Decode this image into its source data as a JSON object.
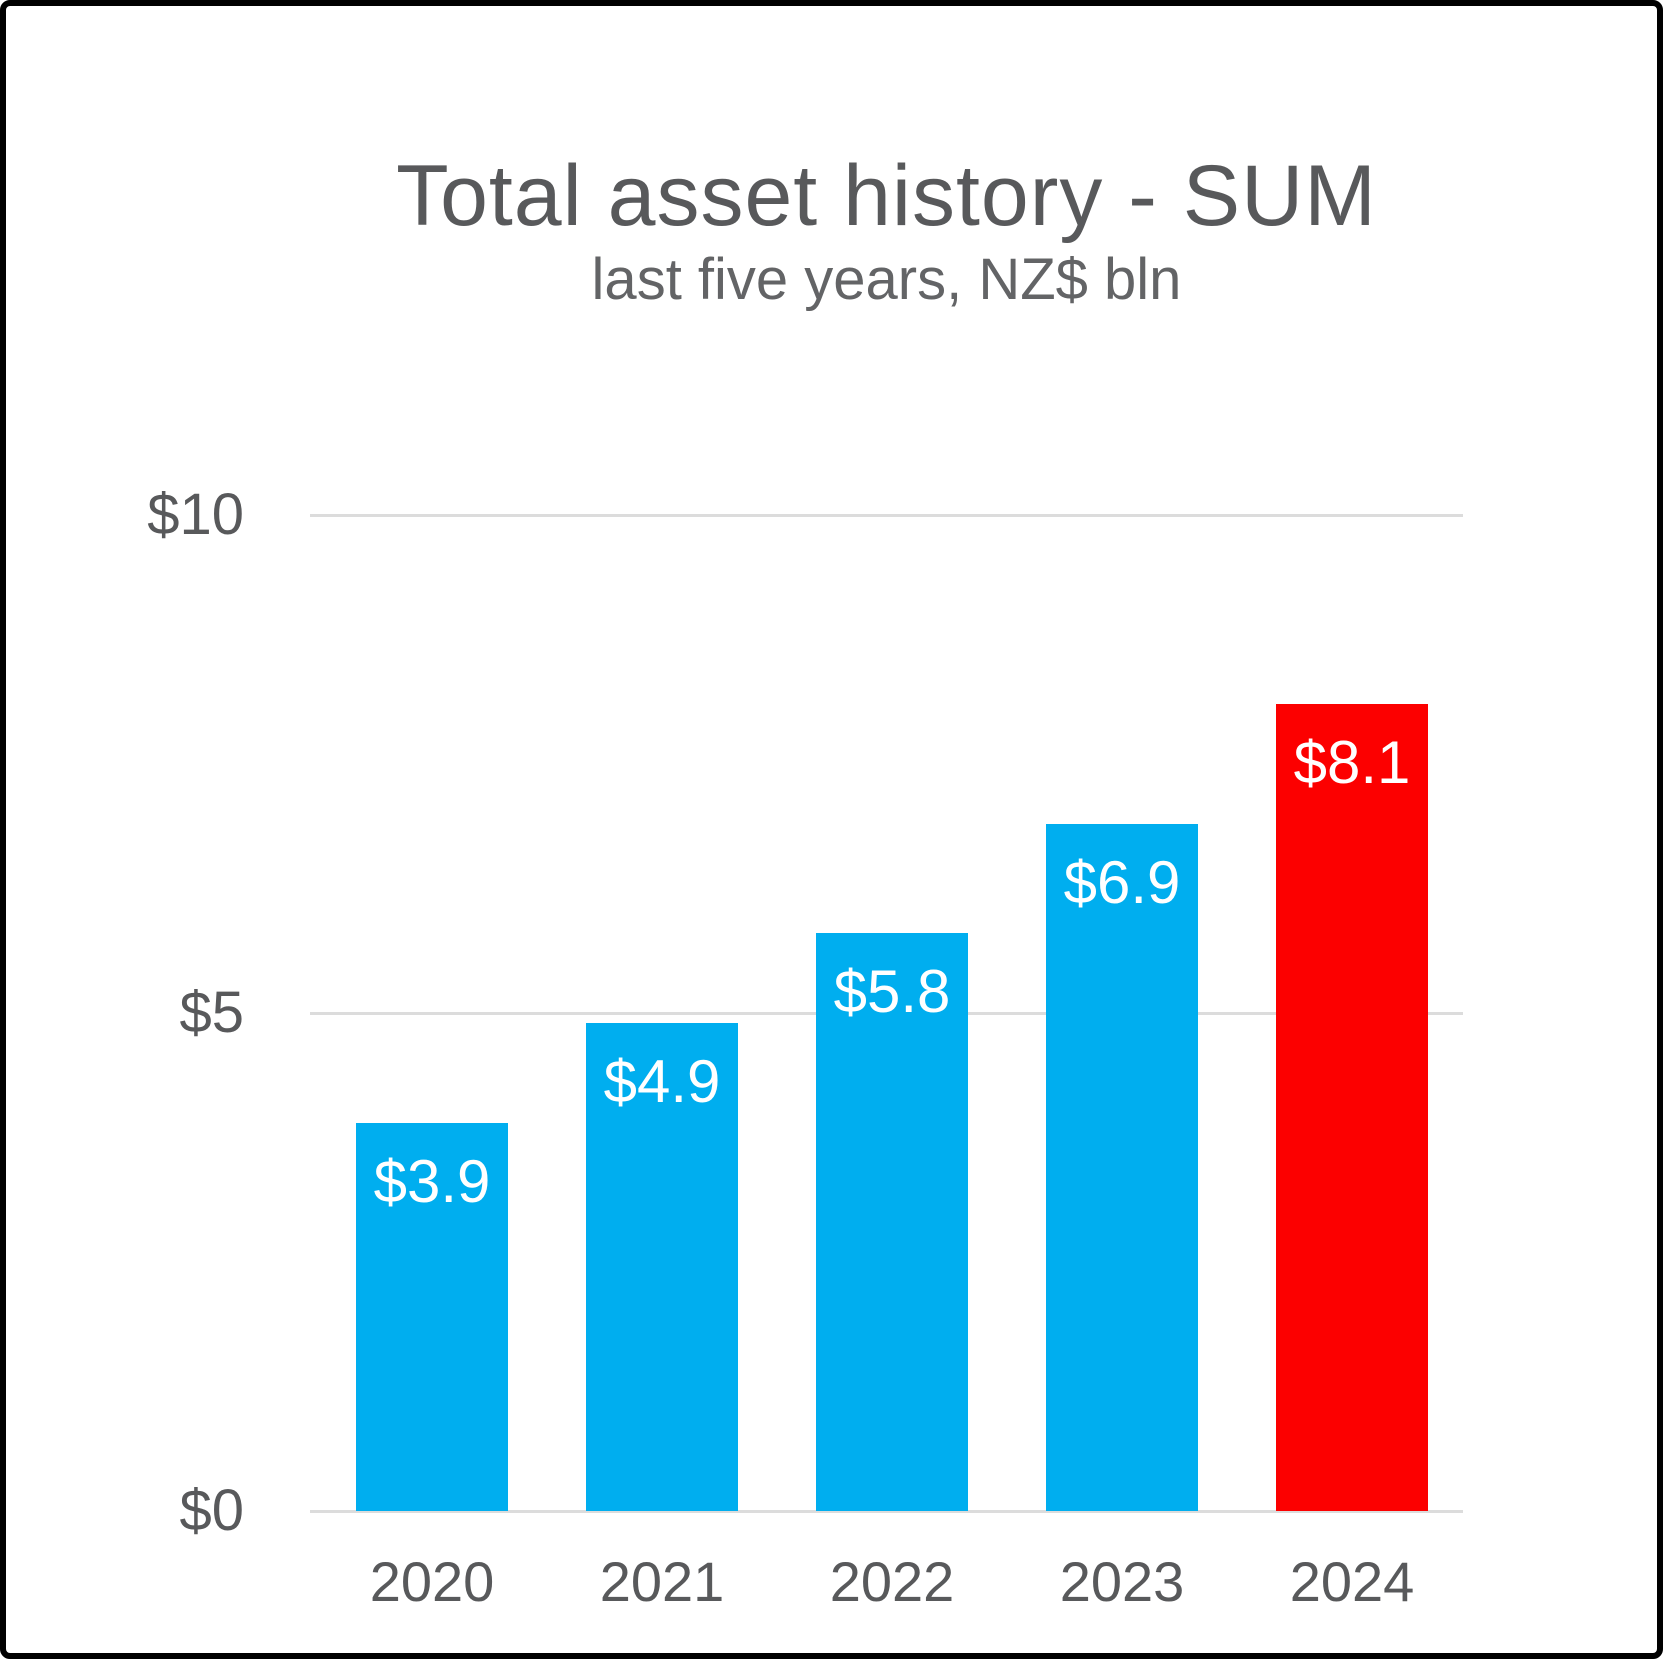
{
  "chart_data": {
    "type": "bar",
    "title": "Total asset history - SUM",
    "subtitle": "last five years, NZ$ bln",
    "categories": [
      "2020",
      "2021",
      "2022",
      "2023",
      "2024"
    ],
    "values": [
      3.9,
      4.9,
      5.8,
      6.9,
      8.1
    ],
    "bar_labels": [
      "$3.9",
      "$4.9",
      "$5.8",
      "$6.9",
      "$8.1"
    ],
    "bar_colors": [
      "#00AEEF",
      "#00AEEF",
      "#00AEEF",
      "#00AEEF",
      "#FC0000"
    ],
    "y_ticks": [
      {
        "value": 0,
        "label": "$0"
      },
      {
        "value": 5,
        "label": "$5"
      },
      {
        "value": 10,
        "label": "$10"
      }
    ],
    "ylim": [
      0,
      10
    ],
    "grid": true,
    "legend": false,
    "colors": {
      "bar_default": "#00AEEF",
      "bar_highlight": "#FC0000",
      "text": "#58595B",
      "grid": "#DCDCDC",
      "value_label": "#FFFFFF",
      "background": "#FFFFFF",
      "frame_border": "#000000"
    }
  }
}
